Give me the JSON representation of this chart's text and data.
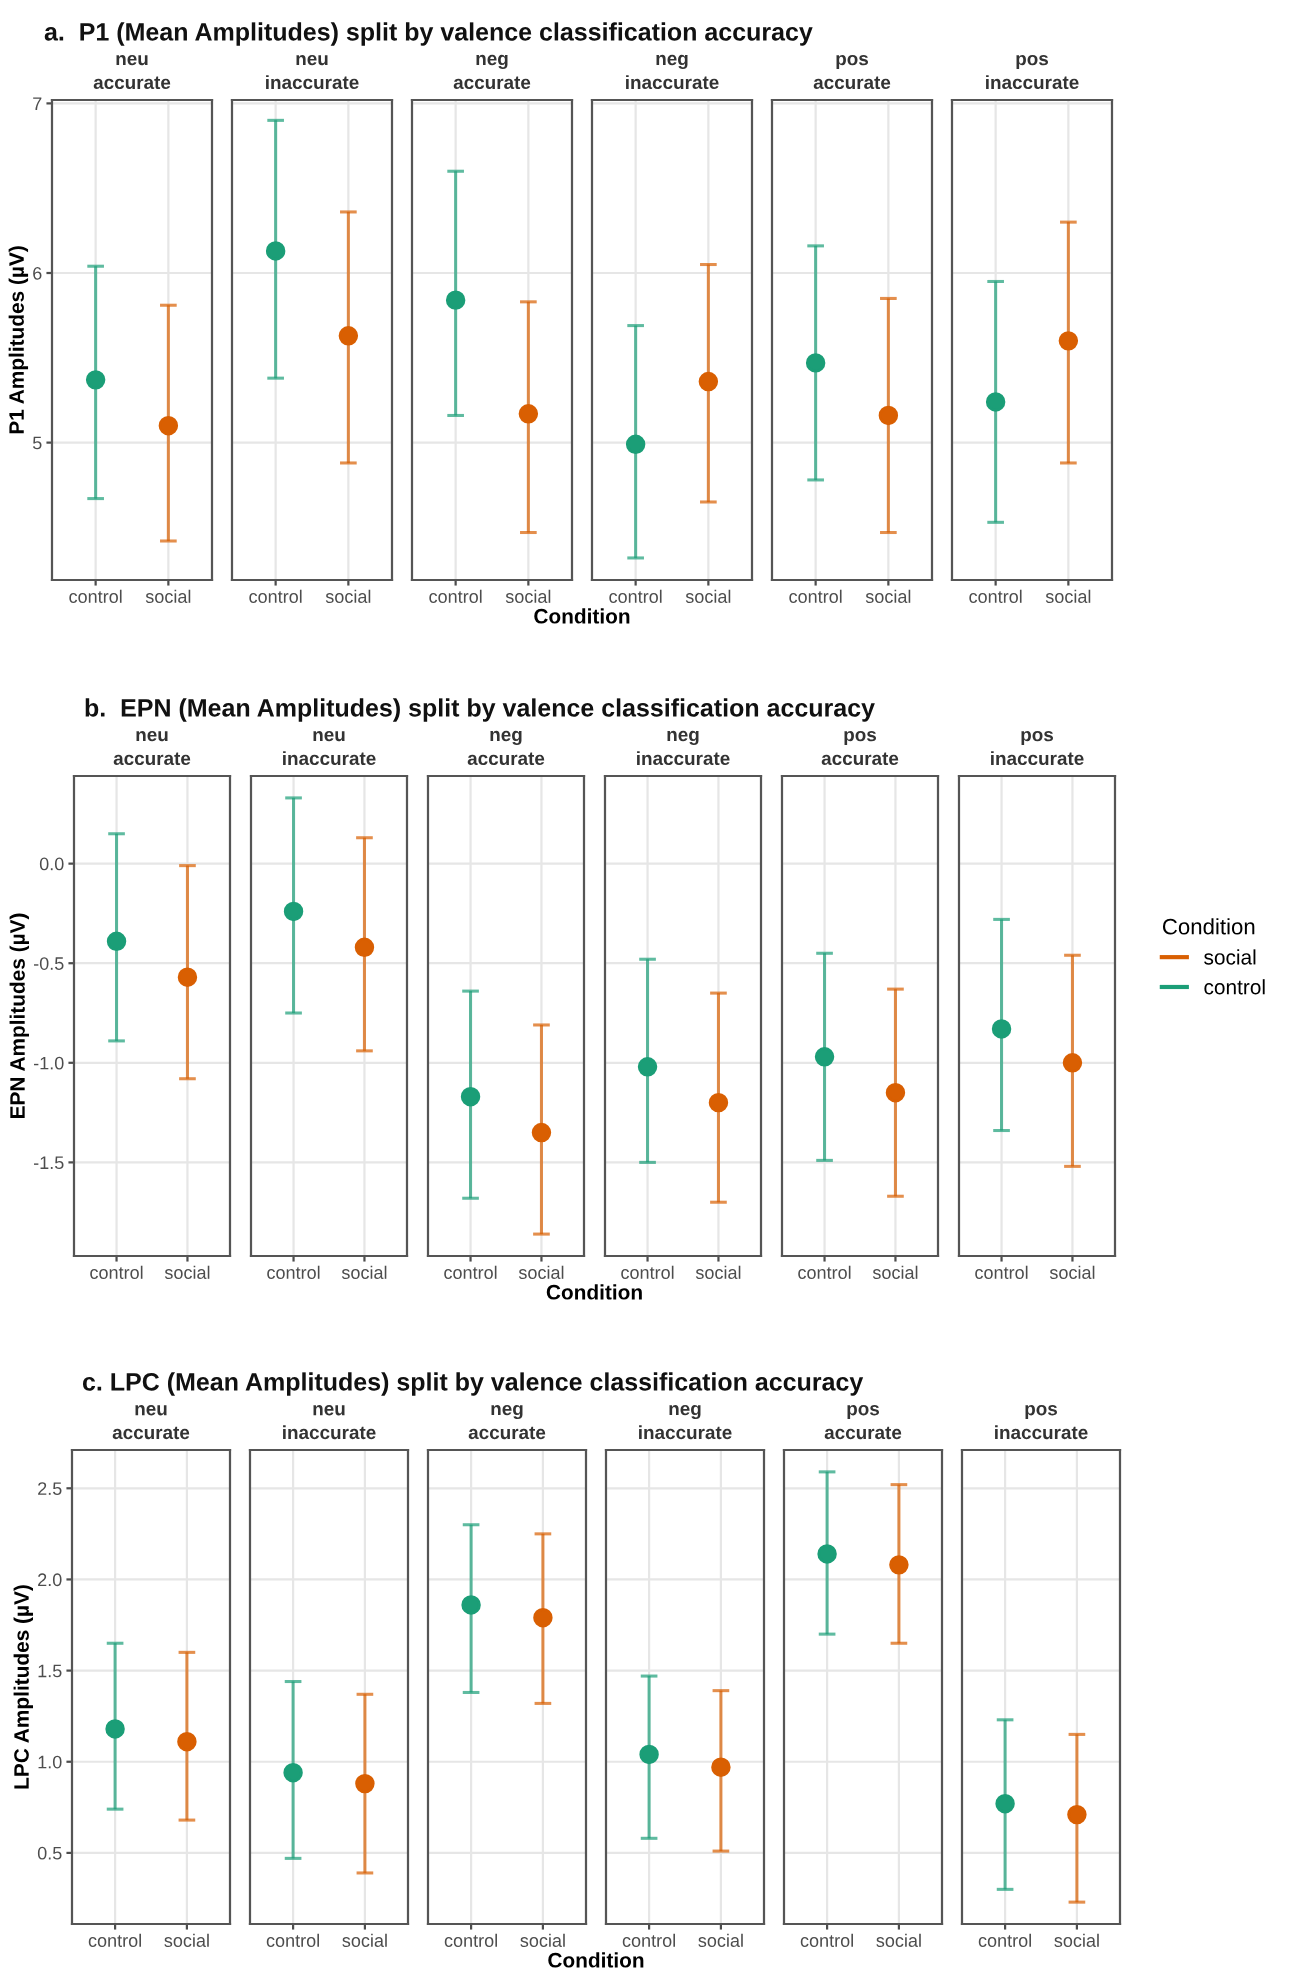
{
  "chart_data": [
    {
      "type": "scatter",
      "title": "a.  P1 (Mean Amplitudes) split by valence classification accuracy",
      "subtitle": "neu\naccurate",
      "ylabel": "P1 Amplitudes (µV)",
      "categories": [
        "control",
        "social"
      ],
      "ylim": [
        4.19,
        7.02
      ],
      "yticks": [
        5,
        6,
        7
      ],
      "grid": true,
      "marker": "circle",
      "series": [
        {
          "color": "#d95f02",
          "values": [
            null,
            5.1
          ],
          "errors": [
            null,
            [
              4.42,
              5.81
            ]
          ]
        },
        {
          "color": "#1b9e77",
          "values": [
            5.37,
            null
          ],
          "errors": [
            [
              4.67,
              6.04
            ],
            null
          ]
        }
      ]
    },
    {
      "type": "scatter",
      "subtitle": "neu\ninaccurate",
      "categories": [
        "control",
        "social"
      ],
      "ylim": [
        4.19,
        7.02
      ],
      "yticks": [
        5,
        6,
        7
      ],
      "grid": true,
      "marker": "circle",
      "tick_labels": "x",
      "series": [
        {
          "color": "#d95f02",
          "values": [
            null,
            5.63
          ],
          "errors": [
            null,
            [
              4.88,
              6.36
            ]
          ]
        },
        {
          "color": "#1b9e77",
          "values": [
            6.13,
            null
          ],
          "errors": [
            [
              5.38,
              6.9
            ],
            null
          ]
        }
      ]
    },
    {
      "type": "scatter",
      "subtitle": "neg\naccurate",
      "xlabel": "Condition",
      "categories": [
        "control",
        "social"
      ],
      "ylim": [
        4.19,
        7.02
      ],
      "yticks": [
        5,
        6,
        7
      ],
      "grid": true,
      "marker": "circle",
      "tick_labels": "x",
      "series": [
        {
          "color": "#d95f02",
          "values": [
            null,
            5.17
          ],
          "errors": [
            null,
            [
              4.47,
              5.83
            ]
          ]
        },
        {
          "color": "#1b9e77",
          "values": [
            5.84,
            null
          ],
          "errors": [
            [
              5.16,
              6.6
            ],
            null
          ]
        }
      ]
    },
    {
      "type": "scatter",
      "subtitle": "neg\ninaccurate",
      "categories": [
        "control",
        "social"
      ],
      "ylim": [
        4.19,
        7.02
      ],
      "yticks": [
        5,
        6,
        7
      ],
      "grid": true,
      "marker": "circle",
      "tick_labels": "x",
      "series": [
        {
          "color": "#d95f02",
          "values": [
            null,
            5.36
          ],
          "errors": [
            null,
            [
              4.65,
              6.05
            ]
          ]
        },
        {
          "color": "#1b9e77",
          "values": [
            4.99,
            null
          ],
          "errors": [
            [
              4.32,
              5.69
            ],
            null
          ]
        }
      ]
    },
    {
      "type": "scatter",
      "subtitle": "pos\naccurate",
      "categories": [
        "control",
        "social"
      ],
      "ylim": [
        4.19,
        7.02
      ],
      "yticks": [
        5,
        6,
        7
      ],
      "grid": true,
      "marker": "circle",
      "tick_labels": "x",
      "series": [
        {
          "color": "#d95f02",
          "values": [
            null,
            5.16
          ],
          "errors": [
            null,
            [
              4.47,
              5.85
            ]
          ]
        },
        {
          "color": "#1b9e77",
          "values": [
            5.47,
            null
          ],
          "errors": [
            [
              4.78,
              6.16
            ],
            null
          ]
        }
      ]
    },
    {
      "type": "scatter",
      "subtitle": "pos\ninaccurate",
      "categories": [
        "control",
        "social"
      ],
      "ylim": [
        4.19,
        7.02
      ],
      "yticks": [
        5,
        6,
        7
      ],
      "grid": true,
      "marker": "circle",
      "tick_labels": "x",
      "series": [
        {
          "color": "#d95f02",
          "values": [
            null,
            5.6
          ],
          "errors": [
            null,
            [
              4.88,
              6.3
            ]
          ]
        },
        {
          "color": "#1b9e77",
          "values": [
            5.24,
            null
          ],
          "errors": [
            [
              4.53,
              5.95
            ],
            null
          ]
        }
      ]
    },
    {
      "type": "scatter",
      "title": "b.  EPN (Mean Amplitudes) split by valence classification accuracy",
      "subtitle": "neu\naccurate",
      "ylabel": "EPN Amplitudes (µV)",
      "categories": [
        "control",
        "social"
      ],
      "ylim": [
        -1.97,
        0.44
      ],
      "yticks": [
        -1.5,
        {
          "value": -1,
          "label": "-1.0"
        },
        -0.5,
        {
          "value": 0,
          "label": "0.0"
        }
      ],
      "grid": true,
      "marker": "circle",
      "series": [
        {
          "color": "#d95f02",
          "values": [
            null,
            -0.57
          ],
          "errors": [
            null,
            [
              -1.08,
              -0.01
            ]
          ]
        },
        {
          "color": "#1b9e77",
          "values": [
            -0.39,
            null
          ],
          "errors": [
            [
              -0.89,
              0.15
            ],
            null
          ]
        }
      ]
    },
    {
      "type": "scatter",
      "subtitle": "neu\ninaccurate",
      "categories": [
        "control",
        "social"
      ],
      "ylim": [
        -1.97,
        0.44
      ],
      "yticks": [
        -1.5,
        -1.0,
        -0.5,
        0.0
      ],
      "grid": true,
      "marker": "circle",
      "tick_labels": "x",
      "series": [
        {
          "color": "#d95f02",
          "values": [
            null,
            -0.42
          ],
          "errors": [
            null,
            [
              -0.94,
              0.13
            ]
          ]
        },
        {
          "color": "#1b9e77",
          "values": [
            -0.24,
            null
          ],
          "errors": [
            [
              -0.75,
              0.33
            ],
            null
          ]
        }
      ]
    },
    {
      "type": "scatter",
      "subtitle": "neg\naccurate",
      "xlabel": "Condition",
      "categories": [
        "control",
        "social"
      ],
      "ylim": [
        -1.97,
        0.44
      ],
      "yticks": [
        -1.5,
        -1.0,
        -0.5,
        0.0
      ],
      "grid": true,
      "marker": "circle",
      "tick_labels": "x",
      "series": [
        {
          "color": "#d95f02",
          "values": [
            null,
            -1.35
          ],
          "errors": [
            null,
            [
              -1.86,
              -0.81
            ]
          ]
        },
        {
          "color": "#1b9e77",
          "values": [
            -1.17,
            null
          ],
          "errors": [
            [
              -1.68,
              -0.64
            ],
            null
          ]
        }
      ]
    },
    {
      "type": "scatter",
      "subtitle": "neg\ninaccurate",
      "categories": [
        "control",
        "social"
      ],
      "ylim": [
        -1.97,
        0.44
      ],
      "yticks": [
        -1.5,
        -1.0,
        -0.5,
        0.0
      ],
      "grid": true,
      "marker": "circle",
      "tick_labels": "x",
      "series": [
        {
          "color": "#d95f02",
          "values": [
            null,
            -1.2
          ],
          "errors": [
            null,
            [
              -1.7,
              -0.65
            ]
          ]
        },
        {
          "color": "#1b9e77",
          "values": [
            -1.02,
            null
          ],
          "errors": [
            [
              -1.5,
              -0.48
            ],
            null
          ]
        }
      ]
    },
    {
      "type": "scatter",
      "subtitle": "pos\naccurate",
      "categories": [
        "control",
        "social"
      ],
      "ylim": [
        -1.97,
        0.44
      ],
      "yticks": [
        -1.5,
        -1.0,
        -0.5,
        0.0
      ],
      "grid": true,
      "marker": "circle",
      "tick_labels": "x",
      "series": [
        {
          "color": "#d95f02",
          "values": [
            null,
            -1.15
          ],
          "errors": [
            null,
            [
              -1.67,
              -0.63
            ]
          ]
        },
        {
          "color": "#1b9e77",
          "values": [
            -0.97,
            null
          ],
          "errors": [
            [
              -1.49,
              -0.45
            ],
            null
          ]
        }
      ]
    },
    {
      "type": "scatter",
      "subtitle": "pos\ninaccurate",
      "legend_title": "Condition",
      "legend": "right",
      "categories": [
        "control",
        "social"
      ],
      "ylim": [
        -1.97,
        0.44
      ],
      "yticks": [
        -1.5,
        -1.0,
        -0.5,
        0.0
      ],
      "grid": true,
      "marker": "circle",
      "tick_labels": "x",
      "series": [
        {
          "name": "social",
          "color": "#d95f02",
          "values": [
            null,
            -1.0
          ],
          "errors": [
            null,
            [
              -1.52,
              -0.46
            ]
          ]
        },
        {
          "name": "control",
          "color": "#1b9e77",
          "values": [
            -0.83,
            null
          ],
          "errors": [
            [
              -1.34,
              -0.28
            ],
            null
          ]
        }
      ]
    },
    {
      "type": "scatter",
      "title": "c. LPC (Mean Amplitudes) split by valence classification accuracy",
      "subtitle": "neu\naccurate",
      "ylabel": "LPC Amplitudes (µV)",
      "categories": [
        "control",
        "social"
      ],
      "ylim": [
        0.11,
        2.71
      ],
      "yticks": [
        0.5,
        {
          "value": 1,
          "label": "1.0"
        },
        1.5,
        {
          "value": 2,
          "label": "2.0"
        },
        2.5
      ],
      "grid": true,
      "marker": "circle",
      "series": [
        {
          "color": "#d95f02",
          "values": [
            null,
            1.11
          ],
          "errors": [
            null,
            [
              0.68,
              1.6
            ]
          ]
        },
        {
          "color": "#1b9e77",
          "values": [
            1.18,
            null
          ],
          "errors": [
            [
              0.74,
              1.65
            ],
            null
          ]
        }
      ]
    },
    {
      "type": "scatter",
      "subtitle": "neu\ninaccurate",
      "categories": [
        "control",
        "social"
      ],
      "ylim": [
        0.11,
        2.71
      ],
      "yticks": [
        0.5,
        1.0,
        1.5,
        2.0,
        2.5
      ],
      "grid": true,
      "marker": "circle",
      "tick_labels": "x",
      "series": [
        {
          "color": "#d95f02",
          "values": [
            null,
            0.88
          ],
          "errors": [
            null,
            [
              0.39,
              1.37
            ]
          ]
        },
        {
          "color": "#1b9e77",
          "values": [
            0.94,
            null
          ],
          "errors": [
            [
              0.47,
              1.44
            ],
            null
          ]
        }
      ]
    },
    {
      "type": "scatter",
      "subtitle": "neg\naccurate",
      "xlabel": "Condition",
      "categories": [
        "control",
        "social"
      ],
      "ylim": [
        0.11,
        2.71
      ],
      "yticks": [
        0.5,
        1.0,
        1.5,
        2.0,
        2.5
      ],
      "grid": true,
      "marker": "circle",
      "tick_labels": "x",
      "series": [
        {
          "color": "#d95f02",
          "values": [
            null,
            1.79
          ],
          "errors": [
            null,
            [
              1.32,
              2.25
            ]
          ]
        },
        {
          "color": "#1b9e77",
          "values": [
            1.86,
            null
          ],
          "errors": [
            [
              1.38,
              2.3
            ],
            null
          ]
        }
      ]
    },
    {
      "type": "scatter",
      "subtitle": "neg\ninaccurate",
      "categories": [
        "control",
        "social"
      ],
      "ylim": [
        0.11,
        2.71
      ],
      "yticks": [
        0.5,
        1.0,
        1.5,
        2.0,
        2.5
      ],
      "grid": true,
      "marker": "circle",
      "tick_labels": "x",
      "series": [
        {
          "color": "#d95f02",
          "values": [
            null,
            0.97
          ],
          "errors": [
            null,
            [
              0.51,
              1.39
            ]
          ]
        },
        {
          "color": "#1b9e77",
          "values": [
            1.04,
            null
          ],
          "errors": [
            [
              0.58,
              1.47
            ],
            null
          ]
        }
      ]
    },
    {
      "type": "scatter",
      "subtitle": "pos\naccurate",
      "categories": [
        "control",
        "social"
      ],
      "ylim": [
        0.11,
        2.71
      ],
      "yticks": [
        0.5,
        1.0,
        1.5,
        2.0,
        2.5
      ],
      "grid": true,
      "marker": "circle",
      "tick_labels": "x",
      "series": [
        {
          "color": "#d95f02",
          "values": [
            null,
            2.08
          ],
          "errors": [
            null,
            [
              1.65,
              2.52
            ]
          ]
        },
        {
          "color": "#1b9e77",
          "values": [
            2.14,
            null
          ],
          "errors": [
            [
              1.7,
              2.59
            ],
            null
          ]
        }
      ]
    },
    {
      "type": "scatter",
      "subtitle": "pos\ninaccurate",
      "categories": [
        "control",
        "social"
      ],
      "ylim": [
        0.11,
        2.71
      ],
      "yticks": [
        0.5,
        1.0,
        1.5,
        2.0,
        2.5
      ],
      "grid": true,
      "marker": "circle",
      "tick_labels": "x",
      "series": [
        {
          "color": "#d95f02",
          "values": [
            null,
            0.71
          ],
          "errors": [
            null,
            [
              0.23,
              1.15
            ]
          ]
        },
        {
          "color": "#1b9e77",
          "values": [
            0.77,
            null
          ],
          "errors": [
            [
              0.3,
              1.23
            ],
            null
          ]
        }
      ]
    }
  ]
}
